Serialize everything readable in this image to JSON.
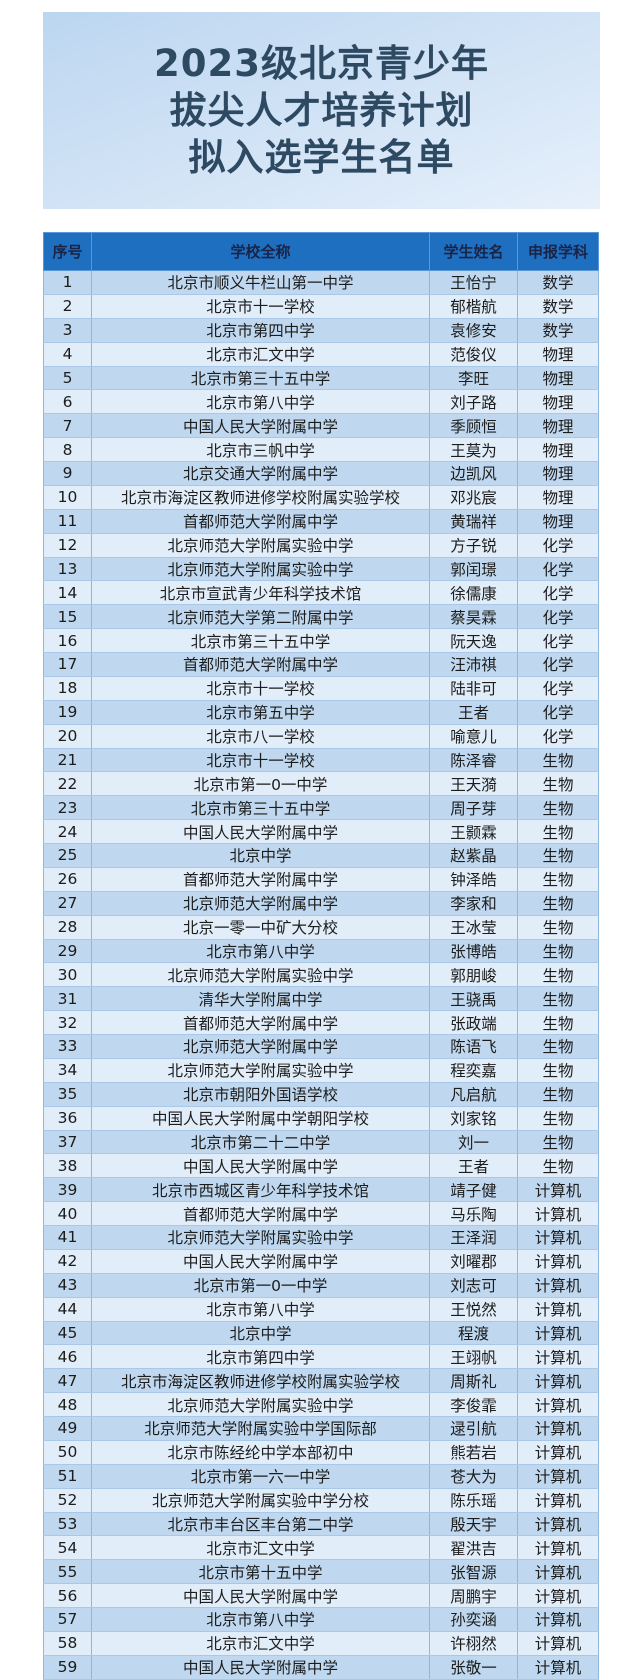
{
  "title": {
    "lines": [
      "2023级北京青少年",
      "拔尖人才培养计划",
      "拟入选学生名单"
    ]
  },
  "colors": {
    "header_bg": "#1e6fc0",
    "row_odd": "#bfd8ef",
    "row_even": "#e1edf8",
    "title_text": "#2e4a63"
  },
  "table": {
    "headers": [
      "序号",
      "学校全称",
      "学生姓名",
      "申报学科"
    ],
    "rows": [
      [
        "1",
        "北京市顺义牛栏山第一中学",
        "王怡宁",
        "数学"
      ],
      [
        "2",
        "北京市十一学校",
        "郁楷航",
        "数学"
      ],
      [
        "3",
        "北京市第四中学",
        "袁修安",
        "数学"
      ],
      [
        "4",
        "北京市汇文中学",
        "范俊仪",
        "物理"
      ],
      [
        "5",
        "北京市第三十五中学",
        "李旺",
        "物理"
      ],
      [
        "6",
        "北京市第八中学",
        "刘子路",
        "物理"
      ],
      [
        "7",
        "中国人民大学附属中学",
        "季顾恒",
        "物理"
      ],
      [
        "8",
        "北京市三帆中学",
        "王莫为",
        "物理"
      ],
      [
        "9",
        "北京交通大学附属中学",
        "边凯风",
        "物理"
      ],
      [
        "10",
        "北京市海淀区教师进修学校附属实验学校",
        "邓兆宸",
        "物理"
      ],
      [
        "11",
        "首都师范大学附属中学",
        "黄瑞祥",
        "物理"
      ],
      [
        "12",
        "北京师范大学附属实验中学",
        "方子锐",
        "化学"
      ],
      [
        "13",
        "北京师范大学附属实验中学",
        "郭闰璟",
        "化学"
      ],
      [
        "14",
        "北京市宣武青少年科学技术馆",
        "徐儒康",
        "化学"
      ],
      [
        "15",
        "北京师范大学第二附属中学",
        "蔡昊霖",
        "化学"
      ],
      [
        "16",
        "北京市第三十五中学",
        "阮天逸",
        "化学"
      ],
      [
        "17",
        "首都师范大学附属中学",
        "汪沛祺",
        "化学"
      ],
      [
        "18",
        "北京市十一学校",
        "陆非可",
        "化学"
      ],
      [
        "19",
        "北京市第五中学",
        "王者",
        "化学"
      ],
      [
        "20",
        "北京市八一学校",
        "喻意儿",
        "化学"
      ],
      [
        "21",
        "北京市十一学校",
        "陈泽睿",
        "生物"
      ],
      [
        "22",
        "北京市第一0一中学",
        "王天漪",
        "生物"
      ],
      [
        "23",
        "北京市第三十五中学",
        "周子芽",
        "生物"
      ],
      [
        "24",
        "中国人民大学附属中学",
        "王颢霖",
        "生物"
      ],
      [
        "25",
        "北京中学",
        "赵紫晶",
        "生物"
      ],
      [
        "26",
        "首都师范大学附属中学",
        "钟泽皓",
        "生物"
      ],
      [
        "27",
        "北京师范大学附属中学",
        "李家和",
        "生物"
      ],
      [
        "28",
        "北京一零一中矿大分校",
        "王冰莹",
        "生物"
      ],
      [
        "29",
        "北京市第八中学",
        "张博皓",
        "生物"
      ],
      [
        "30",
        "北京师范大学附属实验中学",
        "郭朋峻",
        "生物"
      ],
      [
        "31",
        "清华大学附属中学",
        "王骁禹",
        "生物"
      ],
      [
        "32",
        "首都师范大学附属中学",
        "张政端",
        "生物"
      ],
      [
        "33",
        "北京师范大学附属中学",
        "陈语飞",
        "生物"
      ],
      [
        "34",
        "北京师范大学附属实验中学",
        "程奕嘉",
        "生物"
      ],
      [
        "35",
        "北京市朝阳外国语学校",
        "凡启航",
        "生物"
      ],
      [
        "36",
        "中国人民大学附属中学朝阳学校",
        "刘家铭",
        "生物"
      ],
      [
        "37",
        "北京市第二十二中学",
        "刘一",
        "生物"
      ],
      [
        "38",
        "中国人民大学附属中学",
        "王者",
        "生物"
      ],
      [
        "39",
        "北京市西城区青少年科学技术馆",
        "靖子健",
        "计算机"
      ],
      [
        "40",
        "首都师范大学附属中学",
        "马乐陶",
        "计算机"
      ],
      [
        "41",
        "北京师范大学附属实验中学",
        "王泽润",
        "计算机"
      ],
      [
        "42",
        "中国人民大学附属中学",
        "刘曜郡",
        "计算机"
      ],
      [
        "43",
        "北京市第一0一中学",
        "刘志可",
        "计算机"
      ],
      [
        "44",
        "北京市第八中学",
        "王悦然",
        "计算机"
      ],
      [
        "45",
        "北京中学",
        "程渡",
        "计算机"
      ],
      [
        "46",
        "北京市第四中学",
        "王翊帆",
        "计算机"
      ],
      [
        "47",
        "北京市海淀区教师进修学校附属实验学校",
        "周斯礼",
        "计算机"
      ],
      [
        "48",
        "北京师范大学附属实验中学",
        "李俊霏",
        "计算机"
      ],
      [
        "49",
        "北京师范大学附属实验中学国际部",
        "逯引航",
        "计算机"
      ],
      [
        "50",
        "北京市陈经纶中学本部初中",
        "熊若岩",
        "计算机"
      ],
      [
        "51",
        "北京市第一六一中学",
        "苍大为",
        "计算机"
      ],
      [
        "52",
        "北京师范大学附属实验中学分校",
        "陈乐瑶",
        "计算机"
      ],
      [
        "53",
        "北京市丰台区丰台第二中学",
        "殷天宇",
        "计算机"
      ],
      [
        "54",
        "北京市汇文中学",
        "翟洪吉",
        "计算机"
      ],
      [
        "55",
        "北京市第十五中学",
        "张智源",
        "计算机"
      ],
      [
        "56",
        "中国人民大学附属中学",
        "周鹏宇",
        "计算机"
      ],
      [
        "57",
        "北京市第八中学",
        "孙奕涵",
        "计算机"
      ],
      [
        "58",
        "北京市汇文中学",
        "许栩然",
        "计算机"
      ],
      [
        "59",
        "中国人民大学附属中学",
        "张敬一",
        "计算机"
      ]
    ]
  }
}
